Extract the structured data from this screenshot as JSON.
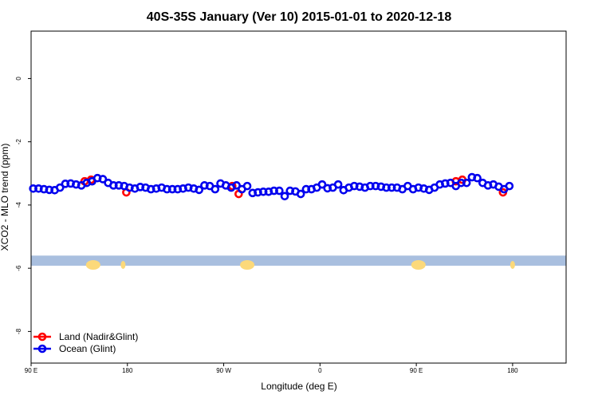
{
  "chart_data": {
    "type": "scatter",
    "title": "40S-35S January (Ver 10)   2015-01-01 to 2020-12-18",
    "xlabel": "Longitude (deg E)",
    "ylabel": "XCO2 - MLO trend (ppm)",
    "xlim": [
      90,
      590
    ],
    "ylim": [
      -9.0,
      1.5
    ],
    "x_ticks": [
      {
        "value": 90,
        "label": "90 E"
      },
      {
        "value": 180,
        "label": "180"
      },
      {
        "value": 270,
        "label": "90 W"
      },
      {
        "value": 360,
        "label": "0"
      },
      {
        "value": 450,
        "label": "90 E"
      },
      {
        "value": 540,
        "label": "180"
      }
    ],
    "y_ticks": [
      {
        "value": 0,
        "label": "0"
      },
      {
        "value": -2,
        "label": "-2"
      },
      {
        "value": -4,
        "label": "-4"
      },
      {
        "value": -6,
        "label": "-6"
      },
      {
        "value": -8,
        "label": "-8"
      }
    ],
    "legend_position": "bottom-left",
    "grid": false,
    "series": [
      {
        "name": "Land (Nadir&Glint)",
        "color": "#ff0000",
        "x": [
          140,
          146,
          179,
          278,
          284,
          487,
          493,
          531
        ],
        "y": [
          -3.25,
          -3.2,
          -3.6,
          -3.4,
          -3.65,
          -3.25,
          -3.2,
          -3.6
        ]
      },
      {
        "name": "Ocean (Glint)",
        "color": "#0000ee",
        "x": [
          92,
          97,
          102,
          107,
          112,
          117,
          122,
          127,
          132,
          137,
          142,
          147,
          152,
          157,
          162,
          167,
          172,
          177,
          182,
          187,
          192,
          197,
          202,
          207,
          212,
          217,
          222,
          227,
          232,
          237,
          242,
          247,
          252,
          257,
          262,
          267,
          272,
          277,
          282,
          287,
          292,
          297,
          302,
          307,
          312,
          317,
          322,
          327,
          332,
          337,
          342,
          347,
          352,
          357,
          362,
          367,
          372,
          377,
          382,
          387,
          392,
          397,
          402,
          407,
          412,
          417,
          422,
          427,
          432,
          437,
          442,
          447,
          452,
          457,
          462,
          467,
          472,
          477,
          482,
          487,
          492,
          497,
          502,
          507,
          512,
          517,
          522,
          527,
          532,
          537
        ],
        "y": [
          -3.48,
          -3.48,
          -3.5,
          -3.52,
          -3.53,
          -3.45,
          -3.33,
          -3.32,
          -3.35,
          -3.38,
          -3.3,
          -3.25,
          -3.15,
          -3.18,
          -3.3,
          -3.38,
          -3.38,
          -3.4,
          -3.45,
          -3.48,
          -3.43,
          -3.45,
          -3.5,
          -3.48,
          -3.45,
          -3.5,
          -3.5,
          -3.5,
          -3.48,
          -3.45,
          -3.48,
          -3.52,
          -3.38,
          -3.4,
          -3.5,
          -3.32,
          -3.38,
          -3.45,
          -3.38,
          -3.5,
          -3.4,
          -3.62,
          -3.6,
          -3.58,
          -3.58,
          -3.55,
          -3.55,
          -3.72,
          -3.55,
          -3.57,
          -3.65,
          -3.5,
          -3.5,
          -3.45,
          -3.35,
          -3.47,
          -3.45,
          -3.35,
          -3.53,
          -3.45,
          -3.4,
          -3.42,
          -3.45,
          -3.4,
          -3.4,
          -3.42,
          -3.45,
          -3.45,
          -3.45,
          -3.5,
          -3.4,
          -3.5,
          -3.45,
          -3.48,
          -3.52,
          -3.45,
          -3.35,
          -3.32,
          -3.3,
          -3.4,
          -3.3,
          -3.3,
          -3.12,
          -3.15,
          -3.3,
          -3.38,
          -3.35,
          -3.42,
          -3.5,
          -3.4
        ]
      }
    ]
  },
  "background_band": {
    "y_range": [
      -5.92,
      -5.6
    ],
    "ocean_color": "#a9bfdf",
    "land_color": "#fcd97a",
    "land_blobs_x": [
      148,
      176,
      292,
      452,
      540
    ]
  }
}
